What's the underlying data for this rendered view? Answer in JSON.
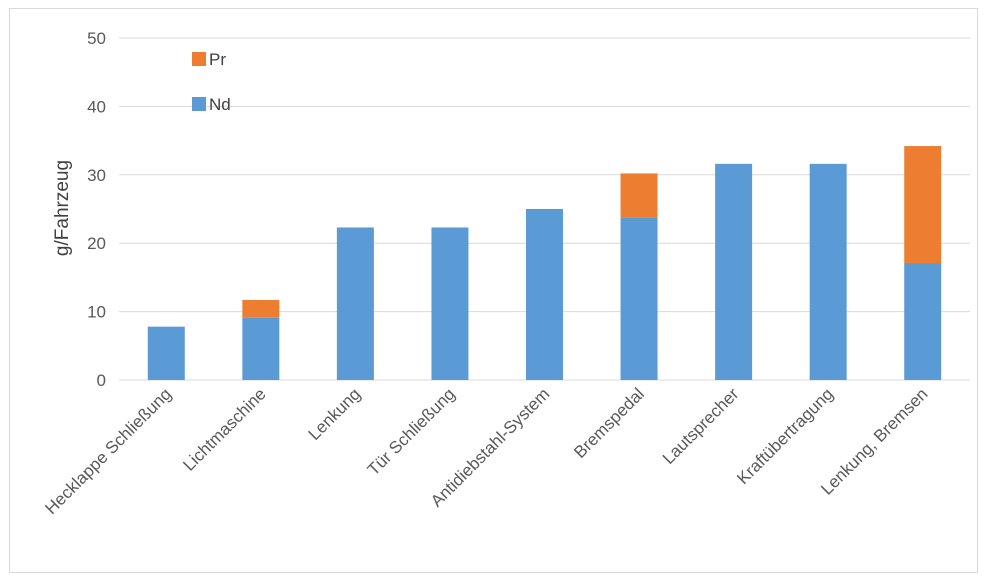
{
  "chart_data": {
    "type": "bar",
    "stacked": true,
    "title": "",
    "xlabel": "",
    "ylabel": "g/Fahrzeug",
    "ylim": [
      0,
      50
    ],
    "yticks": [
      0,
      10,
      20,
      30,
      40,
      50
    ],
    "grid": true,
    "legend_position": "top-left",
    "categories": [
      "Hecklappe Schließung",
      "Lichtmaschine",
      "Lenkung",
      "Tür Schließung",
      "Antidiebstahl-System",
      "Bremspedal",
      "Lautsprecher",
      "Kraftübertragung",
      "Lenkung, Bremsen"
    ],
    "series": [
      {
        "name": "Nd",
        "color": "#5b9bd5",
        "values": [
          7.8,
          9.1,
          22.3,
          22.3,
          25.0,
          23.7,
          31.6,
          31.6,
          17.1
        ]
      },
      {
        "name": "Pr",
        "color": "#ed7d31",
        "values": [
          0,
          2.6,
          0,
          0,
          0,
          6.5,
          0,
          0,
          17.1
        ]
      }
    ],
    "legend_order": [
      "Pr",
      "Nd"
    ]
  }
}
